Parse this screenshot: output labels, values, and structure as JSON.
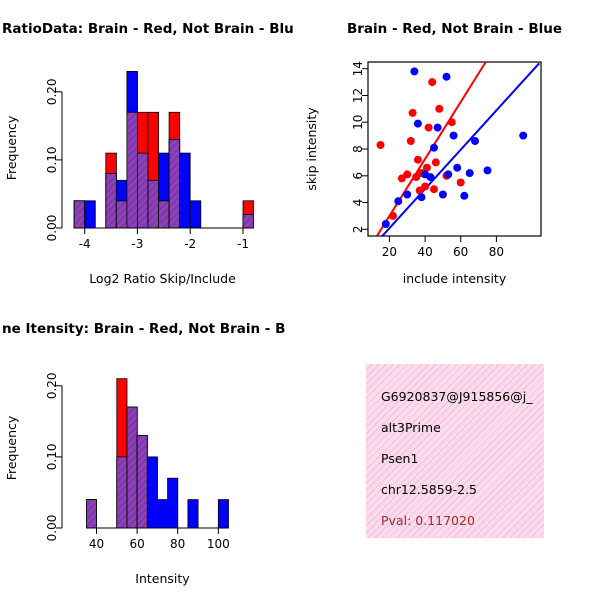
{
  "colors": {
    "red": "#FF0000",
    "blue": "#0000FF",
    "overlap_base": "#A53CA5",
    "overlap_stripe": "#6A3FC0",
    "info_bg": "#FBDCEC",
    "info_stripe": "#F3BDDC",
    "pval": "#A52A2A"
  },
  "chart_data": [
    {
      "type": "bar",
      "subtype": "overlaid-histogram",
      "title": "RatioData: Brain - Red, Not Brain - Blu",
      "title_anchor": "start",
      "xlabel": "Log2 Ratio Skip/Include",
      "ylabel": "Frequency",
      "xlim": [
        -4.43,
        -0.62
      ],
      "ylim": [
        0,
        0.235
      ],
      "xticks": [
        -4,
        -3,
        -2,
        -1
      ],
      "yticks": [
        0,
        0.1,
        0.2
      ],
      "ytick_labels": [
        "0.00",
        "0.10",
        "0.20"
      ],
      "grid": "off",
      "legend": "none",
      "margins": {
        "l": 62,
        "r": 37,
        "t": 68,
        "b": 72
      },
      "bin_edges": [
        -4.2,
        -4.0,
        -3.8,
        -3.6,
        -3.4,
        -3.2,
        -3.0,
        -2.8,
        -2.6,
        -2.4,
        -2.2,
        -2.0,
        -1.8,
        -1.6,
        -1.4,
        -1.2,
        -1.0,
        -0.8
      ],
      "series": [
        {
          "name": "Not Brain",
          "color": "blue",
          "values": [
            0.04,
            0.04,
            0,
            0.08,
            0.07,
            0.23,
            0.11,
            0.07,
            0.11,
            0.13,
            0.11,
            0.04,
            0,
            0,
            0,
            0,
            0.02
          ]
        },
        {
          "name": "Brain",
          "color": "red",
          "values": [
            0.04,
            0,
            0,
            0.11,
            0.04,
            0.17,
            0.17,
            0.17,
            0.04,
            0.17,
            0,
            0,
            0,
            0,
            0,
            0,
            0.04
          ]
        }
      ]
    },
    {
      "type": "scatter",
      "title": "Brain - Red, Not Brain - Blue",
      "title_anchor": "middle",
      "xlabel": "include intensity",
      "ylabel": "skip intensity",
      "xlim": [
        8,
        105
      ],
      "ylim": [
        1.5,
        14.5
      ],
      "xticks": [
        20,
        40,
        60,
        80
      ],
      "yticks": [
        2,
        4,
        6,
        8,
        10,
        12,
        14
      ],
      "grid": "off",
      "legend": "none",
      "margins": {
        "l": 68,
        "r": 59,
        "t": 62,
        "b": 64
      },
      "series": [
        {
          "name": "Brain",
          "color": "red",
          "points": [
            [
              15,
              8.3
            ],
            [
              22,
              3
            ],
            [
              27,
              5.8
            ],
            [
              30,
              6.1
            ],
            [
              32,
              8.6
            ],
            [
              33,
              10.7
            ],
            [
              35,
              5.9
            ],
            [
              36,
              7.2
            ],
            [
              37,
              4.9
            ],
            [
              38,
              6.2
            ],
            [
              40,
              5.2
            ],
            [
              41,
              6.6
            ],
            [
              42,
              9.6
            ],
            [
              44,
              13
            ],
            [
              45,
              5
            ],
            [
              46,
              7
            ],
            [
              48,
              11
            ],
            [
              52,
              6
            ],
            [
              55,
              10
            ],
            [
              60,
              5.5
            ]
          ]
        },
        {
          "name": "Not Brain",
          "color": "blue",
          "points": [
            [
              18,
              2.4
            ],
            [
              25,
              4.1
            ],
            [
              30,
              4.6
            ],
            [
              34,
              13.8
            ],
            [
              36,
              9.9
            ],
            [
              38,
              4.4
            ],
            [
              40,
              6.1
            ],
            [
              43,
              5.9
            ],
            [
              45,
              8.1
            ],
            [
              47,
              9.6
            ],
            [
              50,
              4.6
            ],
            [
              52,
              13.4
            ],
            [
              53,
              6.1
            ],
            [
              56,
              9
            ],
            [
              58,
              6.6
            ],
            [
              62,
              4.5
            ],
            [
              65,
              6.2
            ],
            [
              68,
              8.6
            ],
            [
              75,
              6.4
            ],
            [
              95,
              9
            ]
          ]
        }
      ],
      "lines": [
        {
          "name": "brain-fit-line",
          "color": "red",
          "x1": 13,
          "y1": 1.5,
          "x2": 74,
          "y2": 14.5
        },
        {
          "name": "notbrain-fit-line",
          "color": "blue",
          "x1": 16,
          "y1": 1.5,
          "x2": 104,
          "y2": 14.4
        }
      ]
    },
    {
      "type": "bar",
      "subtype": "overlaid-histogram",
      "title": "ne Itensity: Brain - Red, Not Brain - B",
      "title_anchor": "start",
      "xlabel": "Intensity",
      "ylabel": "Frequency",
      "xlim": [
        23,
        122
      ],
      "ylim": [
        0,
        0.225
      ],
      "xticks": [
        40,
        60,
        80,
        100
      ],
      "yticks": [
        0,
        0.1,
        0.2
      ],
      "ytick_labels": [
        "0.00",
        "0.10",
        "0.20"
      ],
      "grid": "off",
      "legend": "none",
      "margins": {
        "l": 62,
        "r": 37,
        "t": 68,
        "b": 72
      },
      "bin_edges": [
        35,
        40,
        45,
        50,
        55,
        60,
        65,
        70,
        75,
        80,
        85,
        90,
        95,
        100,
        105
      ],
      "series": [
        {
          "name": "Not Brain",
          "color": "blue",
          "values": [
            0.04,
            0,
            0,
            0.1,
            0.17,
            0.13,
            0.1,
            0.04,
            0.07,
            0,
            0.04,
            0,
            0,
            0.04
          ]
        },
        {
          "name": "Brain",
          "color": "red",
          "values": [
            0.04,
            0,
            0,
            0.21,
            0.17,
            0.13,
            0,
            0,
            0,
            0,
            0,
            0,
            0,
            0
          ]
        }
      ]
    }
  ],
  "info_box": {
    "lines": [
      "G6920837@J915856@j_",
      "alt3Prime",
      "Psen1",
      "chr12.5859-2.5"
    ],
    "pval": "Pval: 0.117020"
  }
}
